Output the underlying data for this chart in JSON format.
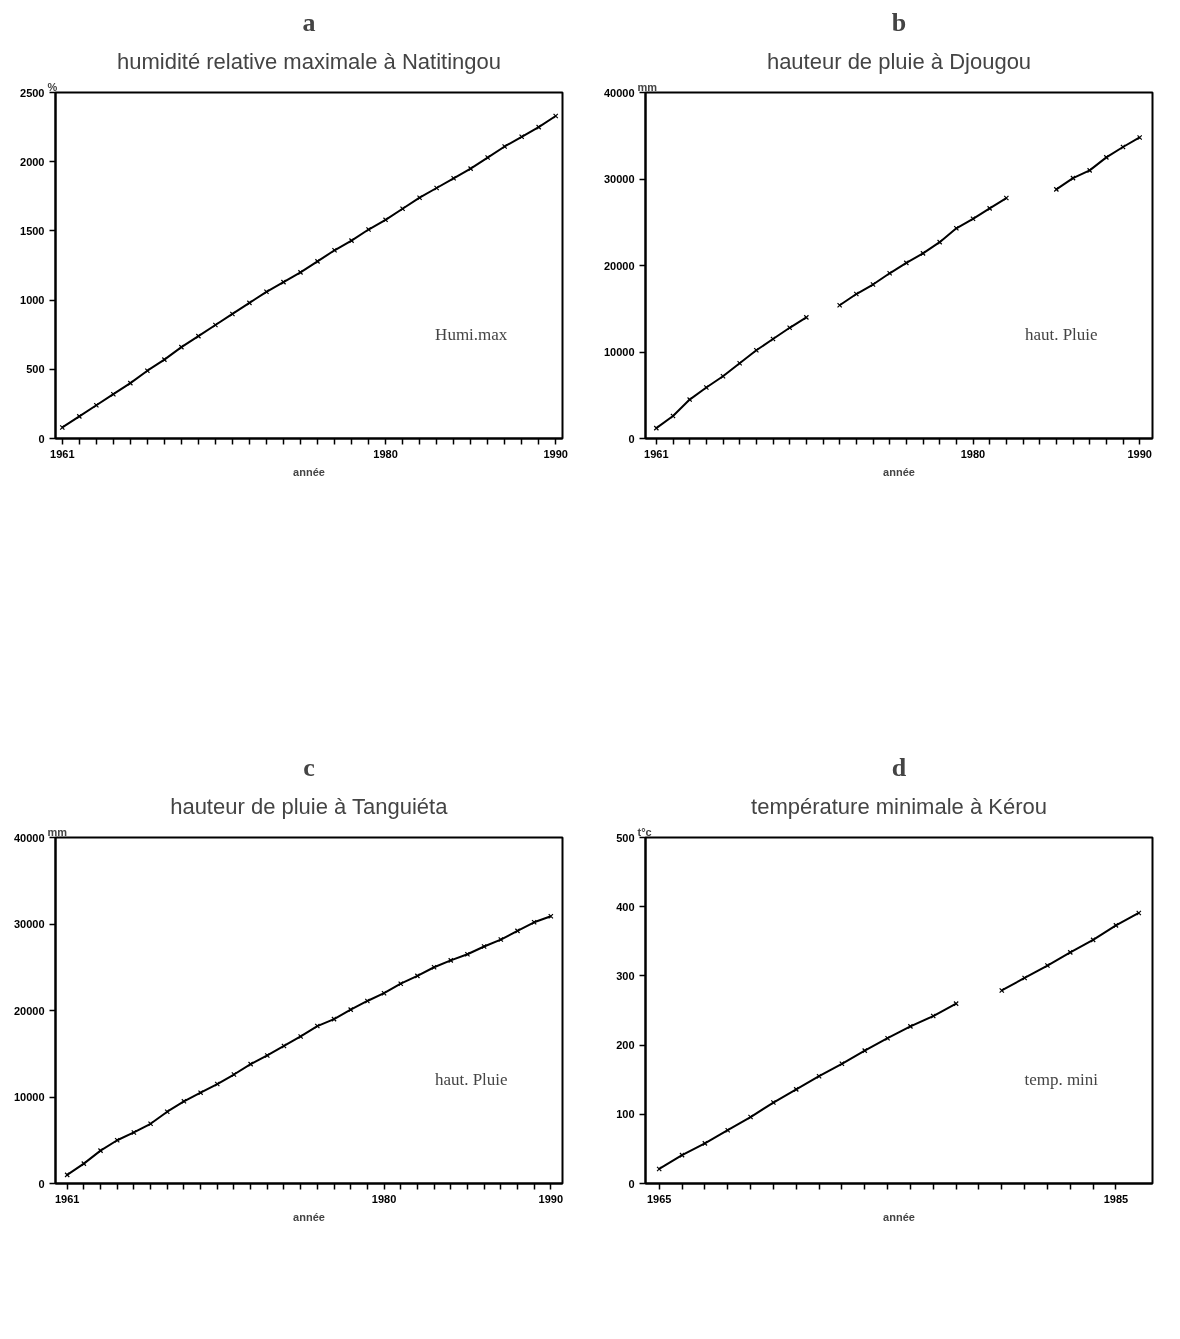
{
  "chart_data": [
    {
      "type": "line",
      "subtitle": "a",
      "title": "humidité relative maximale à Natitingou",
      "xlabel": "année",
      "ylabel": "%",
      "marker": "cross",
      "grid": false,
      "legend": "bottom right",
      "x": [
        1961,
        1962,
        1963,
        1964,
        1965,
        1966,
        1967,
        1968,
        1969,
        1970,
        1971,
        1972,
        1973,
        1974,
        1975,
        1976,
        1977,
        1978,
        1979,
        1980,
        1981,
        1982,
        1983,
        1984,
        1985,
        1986,
        1987,
        1988,
        1989,
        1990
      ],
      "series": [
        {
          "name": "Humi.max",
          "color": "#000000",
          "values": [
            80,
            160,
            240,
            320,
            400,
            490,
            570,
            660,
            740,
            820,
            900,
            980,
            1060,
            1130,
            1200,
            1280,
            1360,
            1430,
            1510,
            1580,
            1660,
            1740,
            1810,
            1880,
            1950,
            2030,
            2110,
            2180,
            2250,
            2330
          ]
        }
      ],
      "xlim": [
        1960.6,
        1990.4
      ],
      "ylim": [
        0,
        2500
      ],
      "yticks": [
        0,
        500,
        1000,
        1500,
        2000,
        2500
      ],
      "xticks": [
        1961,
        {
          "value": 1962,
          "label": null
        },
        {
          "value": 1963,
          "label": null
        },
        {
          "value": 1964,
          "label": null
        },
        {
          "value": 1965,
          "label": null
        },
        {
          "value": 1966,
          "label": null
        },
        {
          "value": 1967,
          "label": null
        },
        {
          "value": 1968,
          "label": null
        },
        {
          "value": 1969,
          "label": null
        },
        {
          "value": 1970,
          "label": null
        },
        {
          "value": 1971,
          "label": null
        },
        {
          "value": 1972,
          "label": null
        },
        {
          "value": 1973,
          "label": null
        },
        {
          "value": 1974,
          "label": null
        },
        {
          "value": 1975,
          "label": null
        },
        {
          "value": 1976,
          "label": null
        },
        {
          "value": 1977,
          "label": null
        },
        {
          "value": 1978,
          "label": null
        },
        {
          "value": 1979,
          "label": null
        },
        1980,
        {
          "value": 1981,
          "label": null
        },
        {
          "value": 1982,
          "label": null
        },
        {
          "value": 1983,
          "label": null
        },
        {
          "value": 1984,
          "label": null
        },
        {
          "value": 1985,
          "label": null
        },
        {
          "value": 1986,
          "label": null
        },
        {
          "value": 1987,
          "label": null
        },
        {
          "value": 1988,
          "label": null
        },
        {
          "value": 1989,
          "label": null
        },
        1990
      ]
    },
    {
      "type": "line",
      "subtitle": "b",
      "title": "hauteur de pluie à Djougou",
      "xlabel": "année",
      "ylabel": "mm",
      "marker": "cross",
      "grid": false,
      "legend": "bottom right",
      "x": [
        1961,
        1962,
        1963,
        1964,
        1965,
        1966,
        1967,
        1968,
        1969,
        1970,
        1971,
        1972,
        1973,
        1974,
        1975,
        1976,
        1977,
        1978,
        1979,
        1980,
        1981,
        1982,
        1983,
        1984,
        1985,
        1986,
        1987,
        1988,
        1989,
        1990
      ],
      "series": [
        {
          "name": "haut. Pluie",
          "color": "#000000",
          "values": [
            1200,
            2600,
            4500,
            5900,
            7200,
            8700,
            10200,
            11500,
            12800,
            14000,
            null,
            15400,
            16700,
            17800,
            19100,
            20300,
            21400,
            22700,
            24300,
            25400,
            26600,
            27800,
            null,
            null,
            28800,
            30100,
            31000,
            32500,
            33700,
            34800
          ]
        }
      ],
      "xlim": [
        1960.35,
        1990.77
      ],
      "ylim": [
        0,
        40000
      ],
      "yticks": [
        0,
        10000,
        20000,
        30000,
        40000
      ],
      "xticks": [
        1961,
        {
          "value": 1962,
          "label": null
        },
        {
          "value": 1963,
          "label": null
        },
        {
          "value": 1964,
          "label": null
        },
        {
          "value": 1965,
          "label": null
        },
        {
          "value": 1966,
          "label": null
        },
        {
          "value": 1967,
          "label": null
        },
        {
          "value": 1968,
          "label": null
        },
        {
          "value": 1969,
          "label": null
        },
        {
          "value": 1970,
          "label": null
        },
        {
          "value": 1971,
          "label": null
        },
        {
          "value": 1972,
          "label": null
        },
        {
          "value": 1973,
          "label": null
        },
        {
          "value": 1974,
          "label": null
        },
        {
          "value": 1975,
          "label": null
        },
        {
          "value": 1976,
          "label": null
        },
        {
          "value": 1977,
          "label": null
        },
        {
          "value": 1978,
          "label": null
        },
        {
          "value": 1979,
          "label": null
        },
        1980,
        {
          "value": 1981,
          "label": null
        },
        {
          "value": 1982,
          "label": null
        },
        {
          "value": 1983,
          "label": null
        },
        {
          "value": 1984,
          "label": null
        },
        {
          "value": 1985,
          "label": null
        },
        {
          "value": 1986,
          "label": null
        },
        {
          "value": 1987,
          "label": null
        },
        {
          "value": 1988,
          "label": null
        },
        {
          "value": 1989,
          "label": null
        },
        1990
      ]
    },
    {
      "type": "line",
      "subtitle": "c",
      "title": "hauteur de pluie à Tanguiéta",
      "xlabel": "année",
      "ylabel": "mm",
      "marker": "cross",
      "grid": false,
      "legend": "bottom right",
      "x": [
        1961,
        1962,
        1963,
        1964,
        1965,
        1966,
        1967,
        1968,
        1969,
        1970,
        1971,
        1972,
        1973,
        1974,
        1975,
        1976,
        1977,
        1978,
        1979,
        1980,
        1981,
        1982,
        1983,
        1984,
        1985,
        1986,
        1987,
        1988,
        1989,
        1990
      ],
      "series": [
        {
          "name": "haut. Pluie",
          "color": "#000000",
          "values": [
            1000,
            2300,
            3800,
            5000,
            5900,
            6900,
            8300,
            9500,
            10500,
            11500,
            12600,
            13800,
            14800,
            15900,
            17000,
            18200,
            19000,
            20100,
            21100,
            22000,
            23100,
            24000,
            25000,
            25800,
            26500,
            27400,
            28200,
            29200,
            30200,
            30900
          ]
        }
      ],
      "xlim": [
        1960.3,
        1990.7
      ],
      "ylim": [
        0,
        40000
      ],
      "yticks": [
        0,
        10000,
        20000,
        30000,
        40000
      ],
      "xticks": [
        1961,
        {
          "value": 1962,
          "label": null
        },
        {
          "value": 1963,
          "label": null
        },
        {
          "value": 1964,
          "label": null
        },
        {
          "value": 1965,
          "label": null
        },
        {
          "value": 1966,
          "label": null
        },
        {
          "value": 1967,
          "label": null
        },
        {
          "value": 1968,
          "label": null
        },
        {
          "value": 1969,
          "label": null
        },
        {
          "value": 1970,
          "label": null
        },
        {
          "value": 1971,
          "label": null
        },
        {
          "value": 1972,
          "label": null
        },
        {
          "value": 1973,
          "label": null
        },
        {
          "value": 1974,
          "label": null
        },
        {
          "value": 1975,
          "label": null
        },
        {
          "value": 1976,
          "label": null
        },
        {
          "value": 1977,
          "label": null
        },
        {
          "value": 1978,
          "label": null
        },
        {
          "value": 1979,
          "label": null
        },
        1980,
        {
          "value": 1981,
          "label": null
        },
        {
          "value": 1982,
          "label": null
        },
        {
          "value": 1983,
          "label": null
        },
        {
          "value": 1984,
          "label": null
        },
        {
          "value": 1985,
          "label": null
        },
        {
          "value": 1986,
          "label": null
        },
        {
          "value": 1987,
          "label": null
        },
        {
          "value": 1988,
          "label": null
        },
        {
          "value": 1989,
          "label": null
        },
        1990
      ]
    },
    {
      "type": "line",
      "subtitle": "d",
      "title": "température minimale à Kérou",
      "xlabel": "année",
      "ylabel": "t°c",
      "marker": "cross",
      "grid": false,
      "legend": "bottom right",
      "x": [
        1965,
        1966,
        1967,
        1968,
        1969,
        1970,
        1971,
        1972,
        1973,
        1974,
        1975,
        1976,
        1977,
        1978,
        1979,
        1980,
        1981,
        1982,
        1983,
        1984,
        1985,
        1986
      ],
      "series": [
        {
          "name": "temp. mini",
          "color": "#000000",
          "values": [
            21,
            41,
            58,
            77,
            96,
            117,
            136,
            155,
            173,
            192,
            210,
            227,
            242,
            260,
            null,
            279,
            297,
            315,
            334,
            352,
            373,
            391
          ]
        }
      ],
      "xlim": [
        1964.4,
        1986.6
      ],
      "ylim": [
        0,
        500
      ],
      "yticks": [
        0,
        100,
        200,
        300,
        400,
        500
      ],
      "xticks": [
        1965,
        {
          "value": 1966,
          "label": null
        },
        {
          "value": 1967,
          "label": null
        },
        {
          "value": 1968,
          "label": null
        },
        {
          "value": 1969,
          "label": null
        },
        {
          "value": 1970,
          "label": null
        },
        {
          "value": 1971,
          "label": null
        },
        {
          "value": 1972,
          "label": null
        },
        {
          "value": 1973,
          "label": null
        },
        {
          "value": 1974,
          "label": null
        },
        {
          "value": 1975,
          "label": null
        },
        {
          "value": 1976,
          "label": null
        },
        {
          "value": 1977,
          "label": null
        },
        {
          "value": 1978,
          "label": null
        },
        {
          "value": 1979,
          "label": null
        },
        {
          "value": 1980,
          "label": null
        },
        {
          "value": 1981,
          "label": null
        },
        {
          "value": 1982,
          "label": null
        },
        {
          "value": 1983,
          "label": null
        },
        {
          "value": 1984,
          "label": null
        },
        1985
      ]
    }
  ]
}
